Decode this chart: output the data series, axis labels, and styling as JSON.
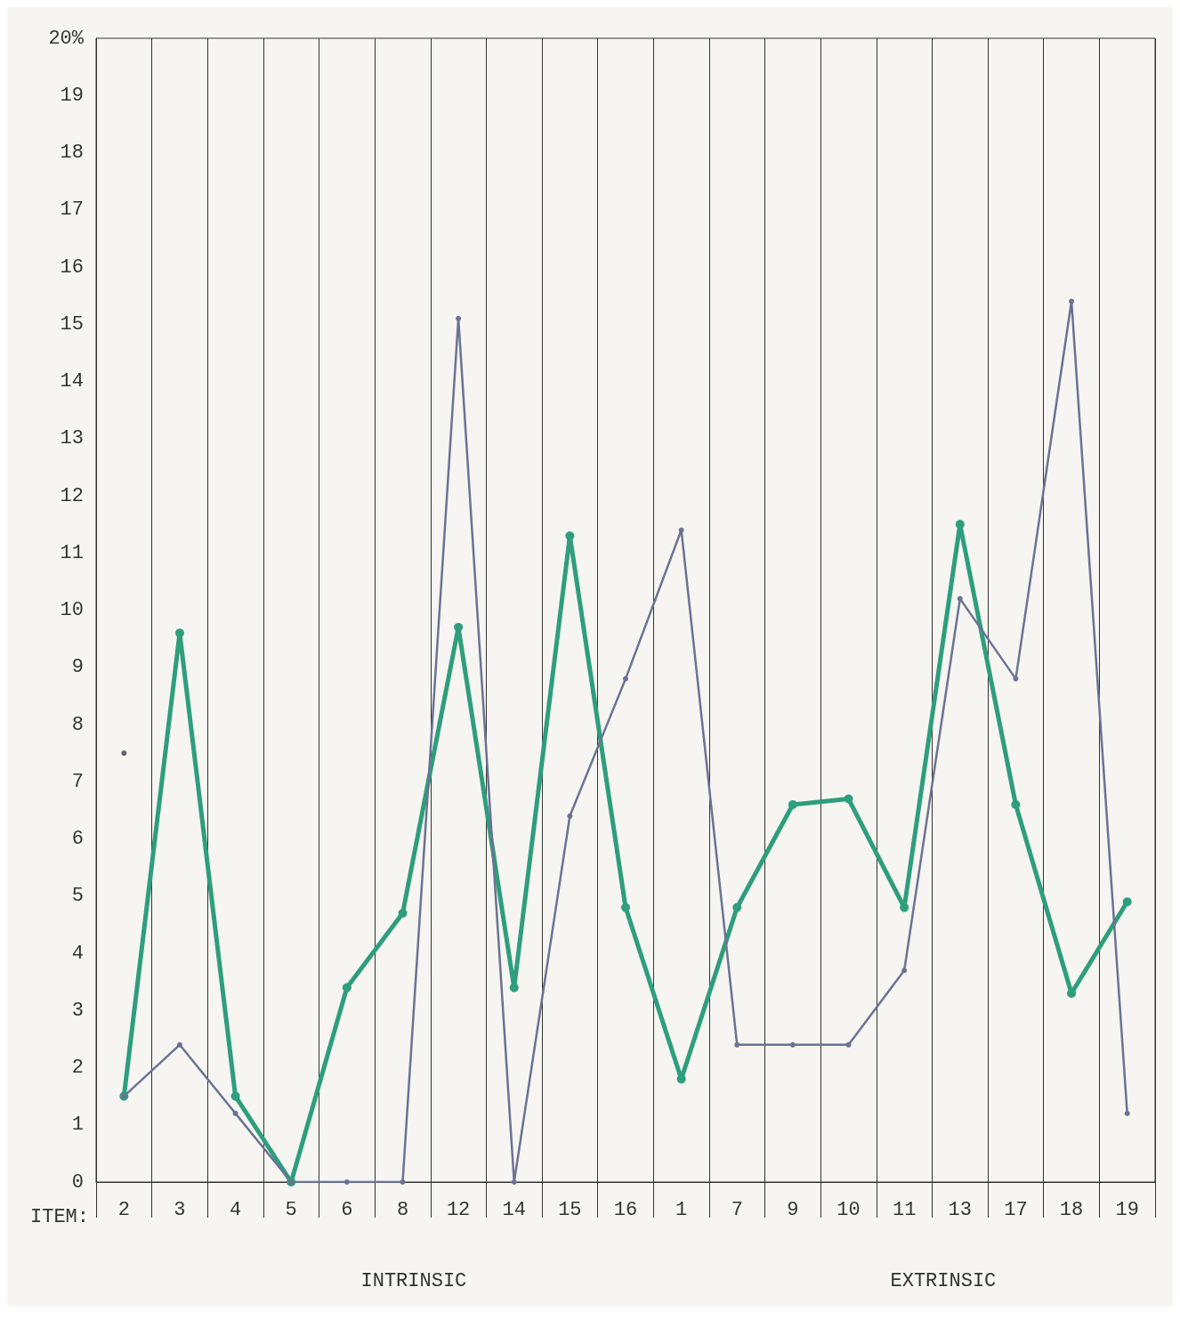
{
  "chart_data": {
    "type": "line",
    "xlabel": "ITEM:",
    "categories": [
      "2",
      "3",
      "4",
      "5",
      "6",
      "8",
      "12",
      "14",
      "15",
      "16",
      "1",
      "7",
      "9",
      "10",
      "11",
      "13",
      "17",
      "18",
      "19"
    ],
    "series": [
      {
        "color": "#2e9e7c",
        "values": [
          1.5,
          9.6,
          1.5,
          0,
          3.4,
          4.7,
          9.7,
          3.4,
          11.3,
          4.8,
          1.8,
          4.8,
          6.6,
          6.7,
          4.8,
          11.5,
          6.6,
          3.3,
          4.9
        ]
      },
      {
        "color": "#6b7294",
        "values": [
          1.5,
          2.4,
          1.2,
          0,
          0,
          0,
          15.1,
          0,
          6.4,
          8.8,
          11.4,
          2.4,
          2.4,
          2.4,
          3.7,
          10.2,
          8.8,
          15.4,
          1.2
        ]
      },
      {
        "type": "scatter",
        "color": "#3a3f55",
        "x": [
          "2"
        ],
        "values": [
          7.5
        ]
      }
    ],
    "ylim": [
      0,
      20
    ],
    "yticks": [
      0,
      1,
      2,
      3,
      4,
      5,
      6,
      7,
      8,
      9,
      10,
      11,
      12,
      13,
      14,
      15,
      16,
      17,
      18,
      19,
      {
        "value": 20,
        "label": "20%"
      }
    ],
    "grid": "x",
    "marker": "circle",
    "line_style": "solid",
    "annotations": [
      "INTRINSIC",
      "EXTRINSIC"
    ]
  }
}
